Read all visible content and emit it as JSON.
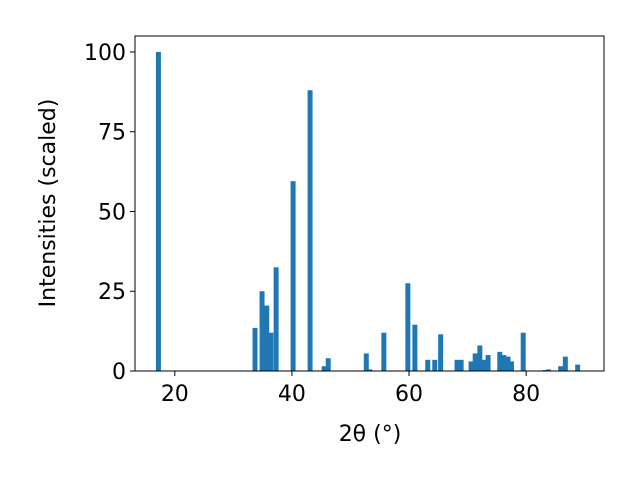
{
  "chart_data": {
    "type": "bar",
    "xlabel": "2θ (°)",
    "ylabel": "Intensities (scaled)",
    "color": "#1f77b4",
    "x": [
      17.2,
      33.7,
      34.9,
      35.7,
      36.4,
      37.3,
      40.2,
      43.1,
      45.5,
      46.2,
      52.7,
      53.3,
      55.7,
      59.8,
      61.0,
      63.2,
      64.4,
      65.4,
      68.2,
      68.9,
      70.6,
      71.3,
      72.1,
      72.9,
      73.5,
      75.5,
      76.2,
      76.9,
      77.5,
      79.5,
      83.2,
      83.8,
      85.9,
      86.7,
      88.8
    ],
    "values": [
      100,
      13.5,
      25,
      20.5,
      12,
      32.5,
      59.5,
      88,
      1.5,
      4,
      5.5,
      0.5,
      12,
      27.5,
      14.5,
      3.5,
      3.5,
      11.5,
      3.5,
      3.5,
      3,
      5.5,
      8,
      3.5,
      5,
      6,
      5,
      4.5,
      3,
      12,
      0.3,
      0.5,
      1.5,
      4.5,
      2
    ],
    "xlim": [
      13.2,
      93.3
    ],
    "xticks": [
      20,
      40,
      60,
      80
    ],
    "ylim": [
      0,
      105
    ],
    "yticks": [
      0,
      25,
      50,
      75,
      100
    ]
  }
}
